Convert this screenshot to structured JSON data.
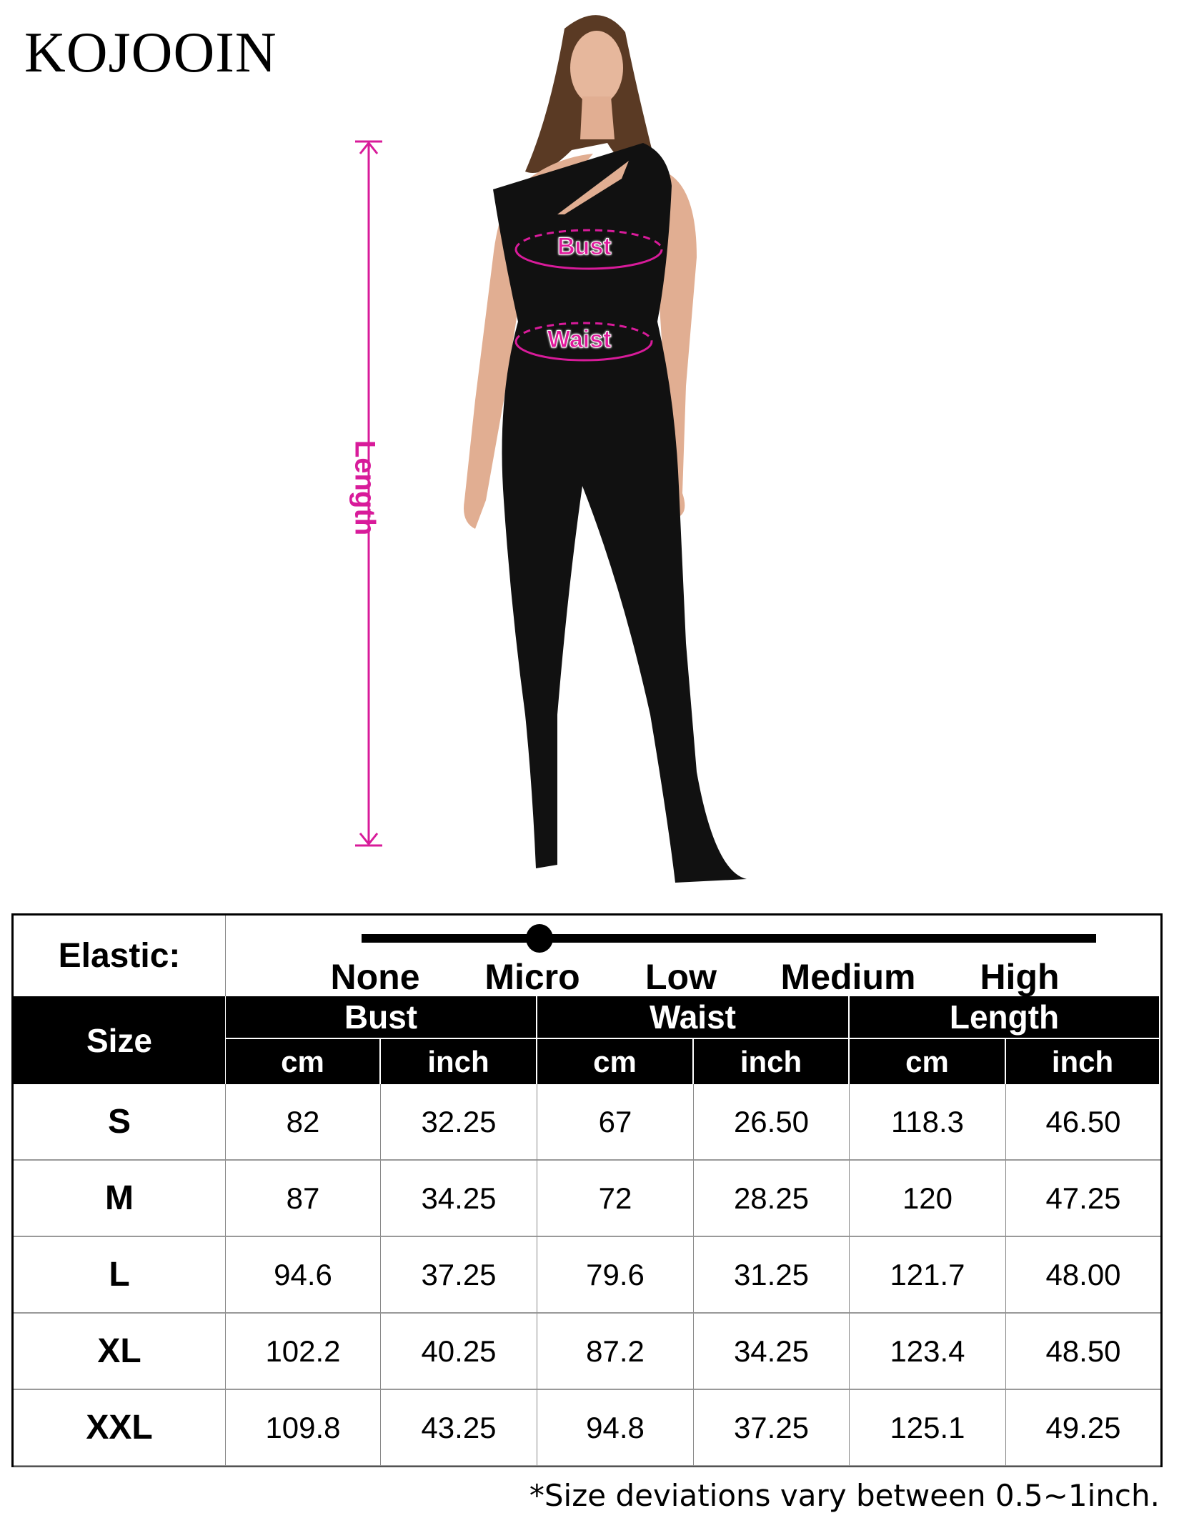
{
  "brand": "KOJOOIN",
  "diagram": {
    "length_label": "Length",
    "bust_label": "Bust",
    "waist_label": "Waist",
    "accent_color": "#d81b9a"
  },
  "elastic": {
    "label": "Elastic:",
    "levels": [
      "None",
      "Micro",
      "Low",
      "Medium",
      "High"
    ],
    "selected": "Micro"
  },
  "table": {
    "size_header": "Size",
    "groups": [
      "Bust",
      "Waist",
      "Length"
    ],
    "units": [
      "cm",
      "inch",
      "cm",
      "inch",
      "cm",
      "inch"
    ],
    "rows": [
      {
        "size": "S",
        "values": [
          "82",
          "32.25",
          "67",
          "26.50",
          "118.3",
          "46.50"
        ]
      },
      {
        "size": "M",
        "values": [
          "87",
          "34.25",
          "72",
          "28.25",
          "120",
          "47.25"
        ]
      },
      {
        "size": "L",
        "values": [
          "94.6",
          "37.25",
          "79.6",
          "31.25",
          "121.7",
          "48.00"
        ]
      },
      {
        "size": "XL",
        "values": [
          "102.2",
          "40.25",
          "87.2",
          "34.25",
          "123.4",
          "48.50"
        ]
      },
      {
        "size": "XXL",
        "values": [
          "109.8",
          "43.25",
          "94.8",
          "37.25",
          "125.1",
          "49.25"
        ]
      }
    ]
  },
  "footnote": "*Size deviations vary between 0.5~1inch."
}
